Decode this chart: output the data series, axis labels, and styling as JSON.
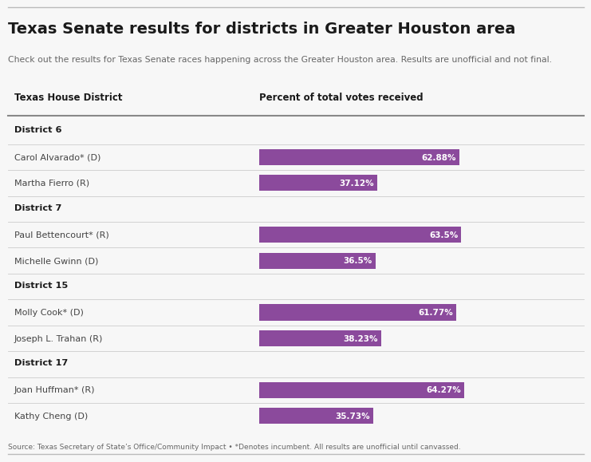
{
  "title": "Texas Senate results for districts in Greater Houston area",
  "subtitle": "Check out the results for Texas Senate races happening across the Greater Houston area. Results are unofficial and not final.",
  "col1_header": "Texas House District",
  "col2_header": "Percent of total votes received",
  "footer": "Source: Texas Secretary of State’s Office/Community Impact • *Denotes incumbent. All results are unofficial until canvassed.",
  "background_color": "#f7f7f7",
  "bar_color": "#8B4A9C",
  "text_color_dark": "#1a1a1a",
  "text_color_mid": "#444444",
  "text_color_light": "#666666",
  "sep_color_heavy": "#888888",
  "sep_color_light": "#cccccc",
  "districts": [
    {
      "district_label": "District 6",
      "candidates": [
        {
          "name": "Carol Alvarado* (D)",
          "value": 62.88,
          "label": "62.88%"
        },
        {
          "name": "Martha Fierro (R)",
          "value": 37.12,
          "label": "37.12%"
        }
      ]
    },
    {
      "district_label": "District 7",
      "candidates": [
        {
          "name": "Paul Bettencourt* (R)",
          "value": 63.5,
          "label": "63.5%"
        },
        {
          "name": "Michelle Gwinn (D)",
          "value": 36.5,
          "label": "36.5%"
        }
      ]
    },
    {
      "district_label": "District 15",
      "candidates": [
        {
          "name": "Molly Cook* (D)",
          "value": 61.77,
          "label": "61.77%"
        },
        {
          "name": "Joseph L. Trahan (R)",
          "value": 38.23,
          "label": "38.23%"
        }
      ]
    },
    {
      "district_label": "District 17",
      "candidates": [
        {
          "name": "Joan Huffman* (R)",
          "value": 64.27,
          "label": "64.27%"
        },
        {
          "name": "Kathy Cheng (D)",
          "value": 35.73,
          "label": "35.73%"
        }
      ]
    }
  ]
}
